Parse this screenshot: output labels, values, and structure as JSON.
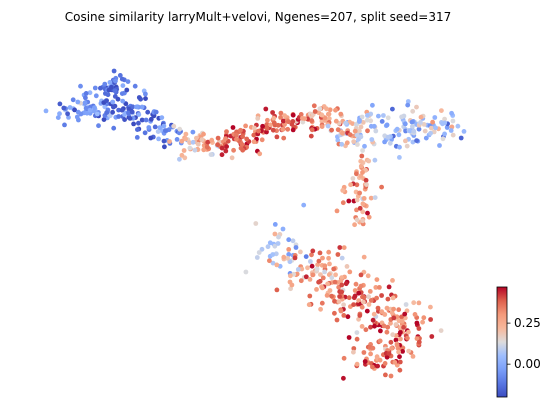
{
  "chart_data": {
    "type": "scatter",
    "title": "Cosine similarity larryMult+velovi, Ngenes=207, split seed=317",
    "xlabel": "",
    "ylabel": "",
    "axes_visible": false,
    "grid": false,
    "colormap": "coolwarm",
    "colorbar": {
      "vmin": -0.2,
      "vmax": 0.47,
      "ticks": [
        0.0,
        0.25
      ],
      "tick_labels": [
        "0.00",
        "0.25"
      ],
      "placement": "bottom-right"
    },
    "regions": [
      {
        "x": 0.12,
        "y": 0.8,
        "sx": 0.035,
        "sy": 0.02,
        "n": 60,
        "value": -0.05,
        "spread": 0.1
      },
      {
        "x": 0.18,
        "y": 0.86,
        "sx": 0.03,
        "sy": 0.018,
        "n": 45,
        "value": -0.1,
        "spread": 0.08
      },
      {
        "x": 0.22,
        "y": 0.79,
        "sx": 0.03,
        "sy": 0.022,
        "n": 55,
        "value": -0.12,
        "spread": 0.08
      },
      {
        "x": 0.29,
        "y": 0.74,
        "sx": 0.03,
        "sy": 0.018,
        "n": 40,
        "value": -0.08,
        "spread": 0.1
      },
      {
        "x": 0.38,
        "y": 0.7,
        "sx": 0.03,
        "sy": 0.02,
        "n": 50,
        "value": 0.22,
        "spread": 0.08
      },
      {
        "x": 0.46,
        "y": 0.71,
        "sx": 0.03,
        "sy": 0.022,
        "n": 60,
        "value": 0.4,
        "spread": 0.06
      },
      {
        "x": 0.55,
        "y": 0.76,
        "sx": 0.03,
        "sy": 0.018,
        "n": 45,
        "value": 0.35,
        "spread": 0.08
      },
      {
        "x": 0.62,
        "y": 0.78,
        "sx": 0.03,
        "sy": 0.018,
        "n": 50,
        "value": 0.3,
        "spread": 0.08
      },
      {
        "x": 0.7,
        "y": 0.74,
        "sx": 0.035,
        "sy": 0.03,
        "n": 60,
        "value": 0.18,
        "spread": 0.12
      },
      {
        "x": 0.8,
        "y": 0.74,
        "sx": 0.04,
        "sy": 0.03,
        "n": 70,
        "value": 0.05,
        "spread": 0.1
      },
      {
        "x": 0.88,
        "y": 0.75,
        "sx": 0.03,
        "sy": 0.025,
        "n": 40,
        "value": 0.1,
        "spread": 0.1
      },
      {
        "x": 0.72,
        "y": 0.55,
        "sx": 0.02,
        "sy": 0.06,
        "n": 60,
        "value": 0.25,
        "spread": 0.1
      },
      {
        "x": 0.55,
        "y": 0.4,
        "sx": 0.03,
        "sy": 0.04,
        "n": 35,
        "value": 0.05,
        "spread": 0.1
      },
      {
        "x": 0.63,
        "y": 0.33,
        "sx": 0.04,
        "sy": 0.04,
        "n": 70,
        "value": 0.28,
        "spread": 0.1
      },
      {
        "x": 0.7,
        "y": 0.25,
        "sx": 0.04,
        "sy": 0.035,
        "n": 75,
        "value": 0.35,
        "spread": 0.08
      },
      {
        "x": 0.8,
        "y": 0.18,
        "sx": 0.04,
        "sy": 0.04,
        "n": 90,
        "value": 0.33,
        "spread": 0.1
      },
      {
        "x": 0.76,
        "y": 0.09,
        "sx": 0.035,
        "sy": 0.03,
        "n": 65,
        "value": 0.35,
        "spread": 0.08
      }
    ]
  }
}
